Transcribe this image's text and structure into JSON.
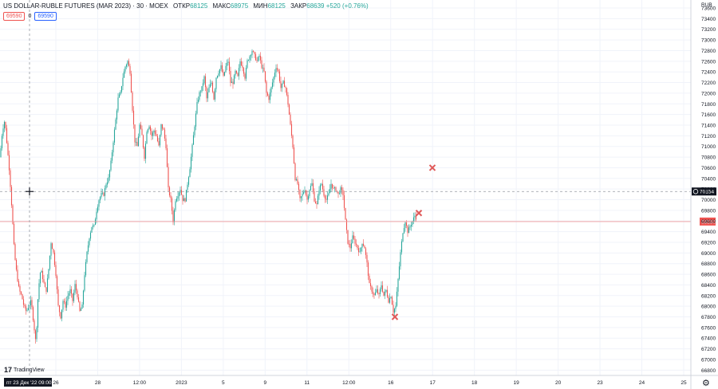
{
  "header": {
    "symbol": "US DOLLAR-RUBLE FUTURES (MAR 2023) · 30 · MOEX",
    "open_label": "ОТКР",
    "open_value": "68125",
    "high_label": "МАКС",
    "high_value": "68975",
    "low_label": "МИН",
    "low_value": "68125",
    "close_label": "ЗАКР",
    "close_value": "68639",
    "change": "+520 (+0.76%)"
  },
  "price_boxes": {
    "sell": "69590",
    "spread": "0",
    "buy": "69590"
  },
  "currency": "RUB",
  "logo_text": "TradingView",
  "crosshair": {
    "price_label": "70154",
    "time_label": "пт 23 Дек '22  09:00"
  },
  "last_price_label": "69590",
  "colors": {
    "up": "#26a69a",
    "down": "#ef5350",
    "grid": "#f0f3fa",
    "crosshair": "#9598a1",
    "marker": "#e05a5a"
  },
  "chart_data": {
    "type": "candlestick",
    "ylim": [
      66700,
      73750
    ],
    "y_ticks": [
      66800,
      67000,
      67200,
      67400,
      67600,
      67800,
      68000,
      68200,
      68400,
      68600,
      68800,
      69000,
      69200,
      69400,
      69600,
      69800,
      70000,
      70200,
      70400,
      70600,
      70800,
      71000,
      71200,
      71400,
      71600,
      71800,
      72000,
      72200,
      72400,
      72600,
      72800,
      73000,
      73200,
      73400,
      73600
    ],
    "x_ticks": [
      "26",
      "28",
      "12:00",
      "2023",
      "5",
      "9",
      "11",
      "12:00",
      "16",
      "17",
      "18",
      "19",
      "20",
      "23",
      "24",
      "25"
    ],
    "close_path": [
      [
        0,
        70800
      ],
      [
        3,
        71300
      ],
      [
        6,
        71500
      ],
      [
        9,
        71000
      ],
      [
        12,
        70500
      ],
      [
        15,
        69800
      ],
      [
        18,
        69000
      ],
      [
        21,
        68600
      ],
      [
        24,
        68300
      ],
      [
        27,
        68200
      ],
      [
        30,
        68000
      ],
      [
        33,
        67900
      ],
      [
        36,
        68000
      ],
      [
        39,
        68100
      ],
      [
        42,
        67700
      ],
      [
        45,
        67300
      ],
      [
        48,
        68300
      ],
      [
        51,
        68700
      ],
      [
        54,
        68500
      ],
      [
        57,
        68300
      ],
      [
        58,
        68300
      ],
      [
        61,
        68700
      ],
      [
        64,
        69200
      ],
      [
        67,
        69000
      ],
      [
        70,
        68600
      ],
      [
        73,
        68000
      ],
      [
        76,
        67800
      ],
      [
        79,
        68100
      ],
      [
        82,
        68000
      ],
      [
        85,
        68200
      ],
      [
        88,
        68300
      ],
      [
        91,
        68100
      ],
      [
        94,
        68400
      ],
      [
        97,
        68200
      ],
      [
        100,
        67900
      ],
      [
        103,
        68000
      ],
      [
        106,
        68600
      ],
      [
        109,
        69000
      ],
      [
        112,
        69300
      ],
      [
        115,
        69500
      ],
      [
        118,
        69500
      ],
      [
        121,
        69800
      ],
      [
        124,
        70000
      ],
      [
        127,
        70100
      ],
      [
        130,
        70100
      ],
      [
        133,
        70300
      ],
      [
        136,
        70400
      ],
      [
        139,
        70700
      ],
      [
        142,
        71100
      ],
      [
        145,
        71500
      ],
      [
        148,
        71900
      ],
      [
        151,
        72000
      ],
      [
        154,
        72300
      ],
      [
        157,
        72500
      ],
      [
        160,
        72600
      ],
      [
        163,
        72400
      ],
      [
        166,
        71700
      ],
      [
        169,
        71100
      ],
      [
        172,
        71000
      ],
      [
        175,
        71400
      ],
      [
        178,
        71200
      ],
      [
        181,
        70800
      ],
      [
        184,
        71300
      ],
      [
        187,
        71400
      ],
      [
        190,
        71200
      ],
      [
        193,
        71300
      ],
      [
        196,
        71200
      ],
      [
        199,
        71000
      ],
      [
        202,
        71400
      ],
      [
        205,
        71300
      ],
      [
        208,
        71000
      ],
      [
        211,
        70200
      ],
      [
        214,
        70000
      ],
      [
        217,
        69600
      ],
      [
        220,
        70000
      ],
      [
        223,
        70100
      ],
      [
        226,
        70200
      ],
      [
        229,
        70000
      ],
      [
        232,
        70000
      ],
      [
        235,
        70300
      ],
      [
        238,
        70600
      ],
      [
        241,
        71000
      ],
      [
        244,
        71400
      ],
      [
        247,
        71800
      ],
      [
        250,
        72000
      ],
      [
        253,
        72100
      ],
      [
        256,
        72300
      ],
      [
        259,
        71900
      ],
      [
        262,
        72100
      ],
      [
        265,
        72200
      ],
      [
        268,
        71900
      ],
      [
        271,
        72300
      ],
      [
        274,
        72400
      ],
      [
        277,
        72500
      ],
      [
        280,
        72300
      ],
      [
        283,
        72500
      ],
      [
        286,
        72600
      ],
      [
        289,
        72200
      ],
      [
        292,
        72200
      ],
      [
        295,
        72400
      ],
      [
        298,
        72300
      ],
      [
        301,
        72600
      ],
      [
        304,
        72500
      ],
      [
        307,
        72300
      ],
      [
        310,
        72600
      ],
      [
        313,
        72700
      ],
      [
        316,
        72800
      ],
      [
        319,
        72700
      ],
      [
        322,
        72600
      ],
      [
        325,
        72700
      ],
      [
        328,
        72500
      ],
      [
        331,
        72400
      ],
      [
        334,
        72000
      ],
      [
        337,
        71900
      ],
      [
        340,
        72100
      ],
      [
        343,
        72300
      ],
      [
        346,
        72500
      ],
      [
        349,
        72400
      ],
      [
        352,
        72100
      ],
      [
        355,
        72200
      ],
      [
        358,
        72100
      ],
      [
        361,
        71800
      ],
      [
        364,
        71400
      ],
      [
        367,
        71000
      ],
      [
        370,
        70400
      ],
      [
        373,
        70300
      ],
      [
        376,
        70000
      ],
      [
        379,
        70100
      ],
      [
        382,
        70200
      ],
      [
        385,
        70000
      ],
      [
        388,
        70200
      ],
      [
        391,
        70300
      ],
      [
        394,
        70000
      ],
      [
        397,
        69900
      ],
      [
        400,
        70200
      ],
      [
        403,
        70300
      ],
      [
        406,
        70100
      ],
      [
        409,
        70000
      ],
      [
        412,
        70100
      ],
      [
        415,
        70300
      ],
      [
        418,
        70200
      ],
      [
        421,
        70200
      ],
      [
        424,
        70100
      ],
      [
        427,
        70200
      ],
      [
        430,
        70100
      ],
      [
        433,
        69600
      ],
      [
        436,
        69200
      ],
      [
        439,
        69100
      ],
      [
        442,
        69300
      ],
      [
        445,
        69200
      ],
      [
        448,
        69100
      ],
      [
        451,
        69000
      ],
      [
        454,
        69200
      ],
      [
        457,
        69100
      ],
      [
        460,
        68800
      ],
      [
        463,
        68400
      ],
      [
        466,
        68300
      ],
      [
        469,
        68200
      ],
      [
        472,
        68300
      ],
      [
        475,
        68200
      ],
      [
        478,
        68400
      ],
      [
        481,
        68200
      ],
      [
        484,
        68300
      ],
      [
        487,
        68100
      ],
      [
        490,
        68200
      ],
      [
        493,
        67900
      ],
      [
        496,
        68000
      ],
      [
        499,
        68500
      ],
      [
        502,
        69000
      ],
      [
        505,
        69400
      ],
      [
        508,
        69600
      ],
      [
        511,
        69400
      ],
      [
        514,
        69500
      ],
      [
        517,
        69600
      ],
      [
        520,
        69700
      ],
      [
        522,
        69650
      ]
    ],
    "markers": [
      [
        495,
        67800
      ],
      [
        525,
        69750
      ],
      [
        542,
        70600
      ]
    ],
    "crosshair": {
      "x": 37,
      "price": 70154
    },
    "last_price": 69590
  }
}
